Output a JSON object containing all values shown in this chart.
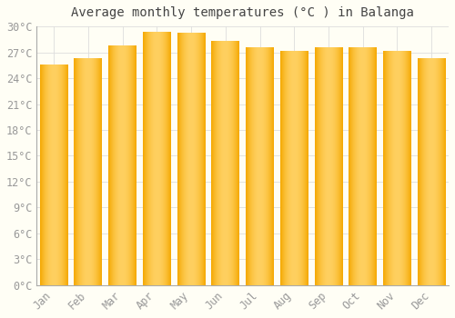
{
  "title": "Average monthly temperatures (°C ) in Balanga",
  "months": [
    "Jan",
    "Feb",
    "Mar",
    "Apr",
    "May",
    "Jun",
    "Jul",
    "Aug",
    "Sep",
    "Oct",
    "Nov",
    "Dec"
  ],
  "values": [
    25.5,
    26.3,
    27.8,
    29.3,
    29.2,
    28.3,
    27.5,
    27.1,
    27.5,
    27.5,
    27.1,
    26.3
  ],
  "bar_color_left": "#F5A800",
  "bar_color_center": "#FFD060",
  "bar_color_right": "#F5A800",
  "background_color": "#FFFEF5",
  "grid_color": "#DDDDDD",
  "ylim": [
    0,
    30
  ],
  "ytick_step": 3,
  "title_fontsize": 10,
  "tick_fontsize": 8.5,
  "font_family": "monospace"
}
